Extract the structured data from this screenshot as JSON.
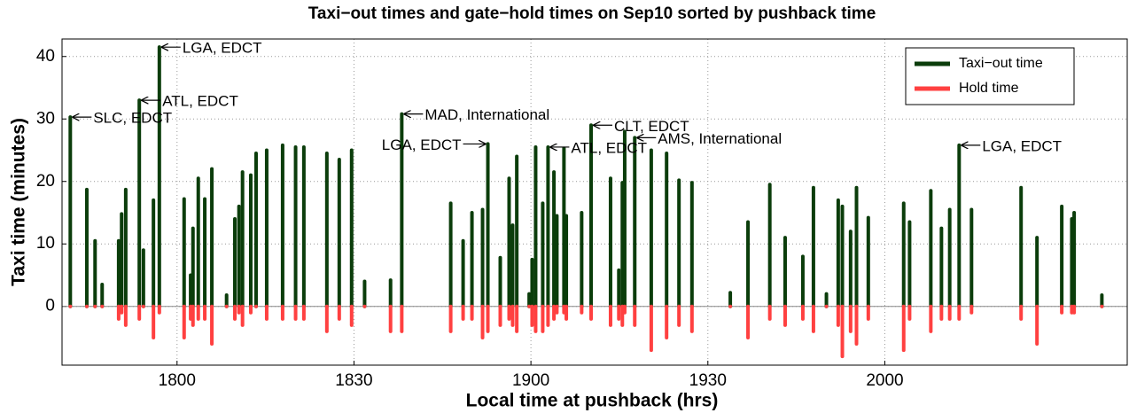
{
  "chart_data": {
    "type": "stem",
    "title": "Taxi−out times and gate−hold times on Sep10 sorted by pushback time",
    "x_label": "Local time at pushback (hrs)",
    "y_label": "Taxi time (minutes)",
    "xlim": [
      1060.5,
      1241.1
    ],
    "ylim": [
      -9.4,
      42.8
    ],
    "xticks": [
      {
        "value": 1080,
        "label": "1800"
      },
      {
        "value": 1110,
        "label": "1830"
      },
      {
        "value": 1140,
        "label": "1900"
      },
      {
        "value": 1170,
        "label": "1930"
      },
      {
        "value": 1200,
        "label": "2000"
      }
    ],
    "yticks": [
      0,
      10,
      20,
      30,
      40
    ],
    "grid": true,
    "legend": "upper right",
    "x": [
      1061.9,
      1064.7,
      1066.1,
      1067.3,
      1070.1,
      1070.6,
      1071.3,
      1073.6,
      1074.3,
      1076.0,
      1077.0,
      1081.2,
      1082.3,
      1082.7,
      1083.6,
      1084.7,
      1085.9,
      1088.4,
      1089.8,
      1090.5,
      1091.1,
      1092.5,
      1093.4,
      1095.2,
      1097.9,
      1100.1,
      1101.5,
      1105.4,
      1107.5,
      1109.6,
      1111.8,
      1116.2,
      1118.1,
      1126.4,
      1128.5,
      1130.0,
      1131.8,
      1132.7,
      1134.8,
      1136.3,
      1136.9,
      1137.6,
      1139.7,
      1140.2,
      1140.8,
      1142.0,
      1142.9,
      1143.9,
      1144.4,
      1145.6,
      1146.0,
      1148.6,
      1150.2,
      1153.5,
      1154.9,
      1155.5,
      1155.9,
      1157.6,
      1160.4,
      1163.0,
      1165.1,
      1167.3,
      1173.8,
      1176.8,
      1180.5,
      1183.1,
      1186.1,
      1187.9,
      1190.1,
      1192.1,
      1192.8,
      1194.2,
      1195.2,
      1197.2,
      1203.2,
      1204.2,
      1207.8,
      1209.6,
      1211.0,
      1212.6,
      1214.7,
      1223.1,
      1225.8,
      1230.0,
      1231.7,
      1232.1,
      1236.8
    ],
    "series": [
      {
        "name": "Taxi−out time",
        "color": "#0b3d0b",
        "values": [
          30.3,
          18.7,
          10.5,
          3.5,
          10.5,
          14.8,
          18.7,
          33,
          9,
          17,
          41.5,
          17.2,
          5,
          12.5,
          20.5,
          17.2,
          22,
          1.8,
          14,
          16,
          21.5,
          21,
          24.5,
          25,
          25.8,
          25.5,
          25.5,
          24.5,
          23.5,
          25,
          4,
          4.2,
          30.8,
          16.5,
          10.5,
          15,
          15.5,
          26,
          7.8,
          20.5,
          13,
          24,
          2,
          7.5,
          25.5,
          16.5,
          25.5,
          21.5,
          14.5,
          25.3,
          14.5,
          15,
          29,
          20.5,
          5.8,
          19.8,
          28,
          27,
          25,
          24.5,
          20.2,
          19.8,
          2.2,
          13.5,
          19.5,
          11,
          8,
          19,
          2,
          17,
          16,
          12,
          19,
          14.2,
          16.5,
          13.5,
          18.5,
          12.5,
          15.5,
          25.8,
          15.5,
          19,
          11,
          16,
          14,
          15,
          1.8
        ]
      },
      {
        "name": "Hold time",
        "color": "#ff4040",
        "values": [
          0,
          0,
          0,
          0,
          -2,
          -1,
          -3,
          -2,
          0,
          -5,
          -1,
          -5,
          -2,
          -3,
          -2,
          -2,
          -6,
          0,
          -2,
          -1,
          -3,
          -1,
          0,
          -2,
          -2,
          -2,
          -2,
          -4,
          -2,
          -3,
          0,
          -4,
          -4,
          -4,
          -2,
          -2,
          -5,
          -4,
          -3,
          -2,
          -3,
          -4,
          0,
          -3,
          -4,
          -4,
          -3,
          -2,
          -1,
          -1,
          -2,
          -1,
          -2,
          -3,
          -2,
          -3,
          -1,
          -3,
          -7,
          -5,
          -3,
          -4,
          0,
          -5,
          -2,
          -3,
          -2,
          -4,
          0,
          -3,
          -8,
          -4,
          -6,
          -2,
          -7,
          -2,
          -4,
          -2,
          -2,
          -2,
          -1,
          -2,
          -6,
          -1,
          -1,
          -1,
          0
        ]
      }
    ],
    "annotations": [
      {
        "text": "SLC, EDCT",
        "x": 1061.9,
        "y": 30.3,
        "align": "right"
      },
      {
        "text": "ATL, EDCT",
        "x": 1073.6,
        "y": 33,
        "align": "right"
      },
      {
        "text": "LGA, EDCT",
        "x": 1077.0,
        "y": 41.5,
        "align": "right"
      },
      {
        "text": "MAD, International",
        "x": 1118.1,
        "y": 30.8,
        "align": "right"
      },
      {
        "text": "LGA, EDCT",
        "x": 1132.7,
        "y": 26,
        "align": "left"
      },
      {
        "text": "ATL, EDCT",
        "x": 1142.9,
        "y": 25.5,
        "align": "right"
      },
      {
        "text": "CLT, EDCT",
        "x": 1150.2,
        "y": 29,
        "align": "right"
      },
      {
        "text": "AMS, International",
        "x": 1157.6,
        "y": 27,
        "align": "right"
      },
      {
        "text": "LGA, EDCT",
        "x": 1212.6,
        "y": 25.8,
        "align": "right"
      }
    ]
  }
}
